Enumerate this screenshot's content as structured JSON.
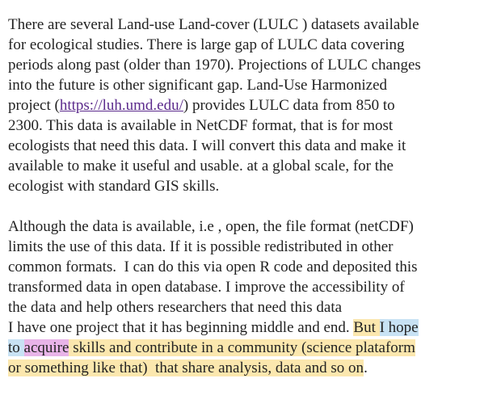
{
  "document": {
    "paragraphs": [
      {
        "lines": [
          [
            {
              "text": "There are several Land-use Land-cover (LULC ) datasets available"
            }
          ],
          [
            {
              "text": "for ecological studies. There is large gap of LULC data covering"
            }
          ],
          [
            {
              "text": "periods along past (older than 1970). Projections of LULC changes"
            }
          ],
          [
            {
              "text": "into the future is other significant gap. Land-Use Harmonized"
            }
          ],
          [
            {
              "text": "project ("
            },
            {
              "text": "https://luh.umd.edu/",
              "link": true
            },
            {
              "text": ") provides LULC data from 850 to"
            }
          ],
          [
            {
              "text": "2300. This data is available in NetCDF format, that is for most"
            }
          ],
          [
            {
              "text": "ecologists that need this data. I will convert this data and make it"
            }
          ],
          [
            {
              "text": "available to make it useful and usable. at a global scale, for the"
            }
          ],
          [
            {
              "text": "ecologist with standard GIS skills."
            }
          ]
        ]
      },
      {
        "lines": [
          [
            {
              "text": "Although the data is available, i.e , open, the file format (netCDF)"
            }
          ],
          [
            {
              "text": "limits the use of this data. If it is possible redistributed in other"
            }
          ],
          [
            {
              "text": "common formats.  I can do this via open R code and deposited this"
            }
          ],
          [
            {
              "text": "transformed data in open database. I improve the accessibility of"
            }
          ],
          [
            {
              "text": "the data and help others researchers that need this data"
            }
          ],
          [
            {
              "text": "I have one project that it has beginning middle and end. "
            },
            {
              "text": "But ",
              "highlight": "#fbe7ae"
            },
            {
              "text": "I hope",
              "highlight": "#c8e2f4"
            }
          ],
          [
            {
              "text": "to ",
              "highlight": "#c8e2f4"
            },
            {
              "text": "acquire",
              "highlight": "#e8b4e8"
            },
            {
              "text": " skills and contribute in a community (science plataform",
              "highlight": "#fbe7ae"
            }
          ],
          [
            {
              "text": "or something like that)  that share analysis, data and so on",
              "highlight": "#fbe7ae"
            },
            {
              "text": "."
            }
          ]
        ]
      }
    ]
  }
}
